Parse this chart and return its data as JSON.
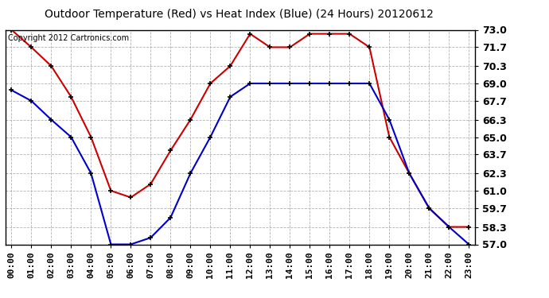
{
  "title": "Outdoor Temperature (Red) vs Heat Index (Blue) (24 Hours) 20120612",
  "copyright_text": "Copyright 2012 Cartronics.com",
  "hours": [
    0,
    1,
    2,
    3,
    4,
    5,
    6,
    7,
    8,
    9,
    10,
    11,
    12,
    13,
    14,
    15,
    16,
    17,
    18,
    19,
    20,
    21,
    22,
    23
  ],
  "red_temp": [
    73.0,
    71.7,
    70.3,
    68.0,
    65.0,
    61.0,
    60.5,
    61.5,
    64.0,
    66.3,
    69.0,
    70.3,
    72.7,
    71.7,
    71.7,
    72.7,
    72.7,
    72.7,
    71.7,
    65.0,
    62.3,
    59.7,
    58.3,
    58.3
  ],
  "blue_heat": [
    68.5,
    67.7,
    66.3,
    65.0,
    62.3,
    57.0,
    57.0,
    57.5,
    59.0,
    62.3,
    65.0,
    68.0,
    69.0,
    69.0,
    69.0,
    69.0,
    69.0,
    69.0,
    69.0,
    66.3,
    62.3,
    59.7,
    58.3,
    57.0
  ],
  "ylim": [
    57.0,
    73.0
  ],
  "yticks": [
    57.0,
    58.3,
    59.7,
    61.0,
    62.3,
    63.7,
    65.0,
    66.3,
    67.7,
    69.0,
    70.3,
    71.7,
    73.0
  ],
  "red_color": "#cc0000",
  "blue_color": "#0000cc",
  "bg_color": "#ffffff",
  "plot_bg_color": "#ffffff",
  "grid_color": "#aaaaaa",
  "marker": "+",
  "marker_color": "#000000",
  "title_fontsize": 10,
  "tick_fontsize": 8,
  "copyright_fontsize": 7
}
